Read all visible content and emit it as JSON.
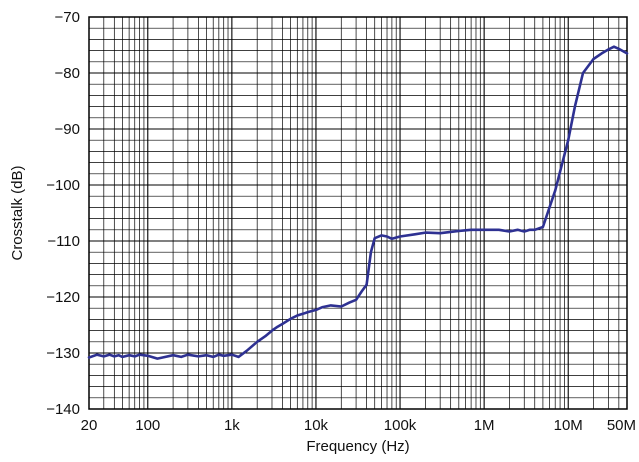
{
  "chart_data": {
    "type": "line",
    "title": "",
    "xlabel": "Frequency (Hz)",
    "ylabel": "Crosstalk (dB)",
    "xscale": "log",
    "xlim": [
      20,
      50000000
    ],
    "ylim": [
      -140,
      -70
    ],
    "grid": true,
    "legend": "none",
    "line_color": "#2e3192",
    "x_ticks": [
      {
        "value": 20,
        "label": "20"
      },
      {
        "value": 100,
        "label": "100"
      },
      {
        "value": 1000,
        "label": "1k"
      },
      {
        "value": 10000,
        "label": "10k"
      },
      {
        "value": 100000,
        "label": "100k"
      },
      {
        "value": 1000000,
        "label": "1M"
      },
      {
        "value": 10000000,
        "label": "10M"
      },
      {
        "value": 50000000,
        "label": "50M"
      }
    ],
    "y_ticks": [
      {
        "value": -70,
        "label": "−70"
      },
      {
        "value": -80,
        "label": "−80"
      },
      {
        "value": -90,
        "label": "−90"
      },
      {
        "value": -100,
        "label": "−100"
      },
      {
        "value": -110,
        "label": "−110"
      },
      {
        "value": -120,
        "label": "−120"
      },
      {
        "value": -130,
        "label": "−130"
      },
      {
        "value": -140,
        "label": "−140"
      }
    ],
    "series": [
      {
        "x": [
          20,
          25,
          30,
          35,
          40,
          45,
          50,
          60,
          70,
          80,
          100,
          130,
          150,
          200,
          250,
          300,
          400,
          500,
          600,
          700,
          800,
          1000,
          1200,
          1500,
          2000,
          2500,
          3000,
          3500,
          4000,
          5000,
          6000,
          7000,
          8000,
          10000,
          12000,
          15000,
          20000,
          25000,
          30000,
          35000,
          40000,
          45000,
          50000,
          60000,
          70000,
          80000,
          100000,
          150000,
          200000,
          300000,
          500000,
          700000,
          1000000,
          1500000,
          2000000,
          2500000,
          3000000,
          3500000,
          4000000,
          5000000,
          7000000,
          10000000,
          12000000,
          15000000,
          20000000,
          25000000,
          30000000,
          35000000,
          40000000,
          50000000
        ],
        "y": [
          -130.8,
          -130.3,
          -130.6,
          -130.3,
          -130.6,
          -130.4,
          -130.7,
          -130.4,
          -130.6,
          -130.3,
          -130.5,
          -131.0,
          -130.8,
          -130.4,
          -130.7,
          -130.3,
          -130.6,
          -130.4,
          -130.7,
          -130.3,
          -130.5,
          -130.3,
          -130.7,
          -129.6,
          -128.0,
          -127.0,
          -126.0,
          -125.3,
          -124.8,
          -123.9,
          -123.3,
          -123.0,
          -122.7,
          -122.3,
          -121.8,
          -121.5,
          -121.7,
          -121.0,
          -120.5,
          -119.0,
          -117.8,
          -112.0,
          -109.5,
          -109.0,
          -109.2,
          -109.6,
          -109.2,
          -108.8,
          -108.5,
          -108.6,
          -108.2,
          -108.0,
          -108.0,
          -108.0,
          -108.3,
          -108.0,
          -108.3,
          -108.0,
          -108.0,
          -107.5,
          -101.0,
          -92.0,
          -86.0,
          -80.0,
          -77.5,
          -76.5,
          -75.8,
          -75.3,
          -75.7,
          -76.5
        ]
      }
    ]
  }
}
